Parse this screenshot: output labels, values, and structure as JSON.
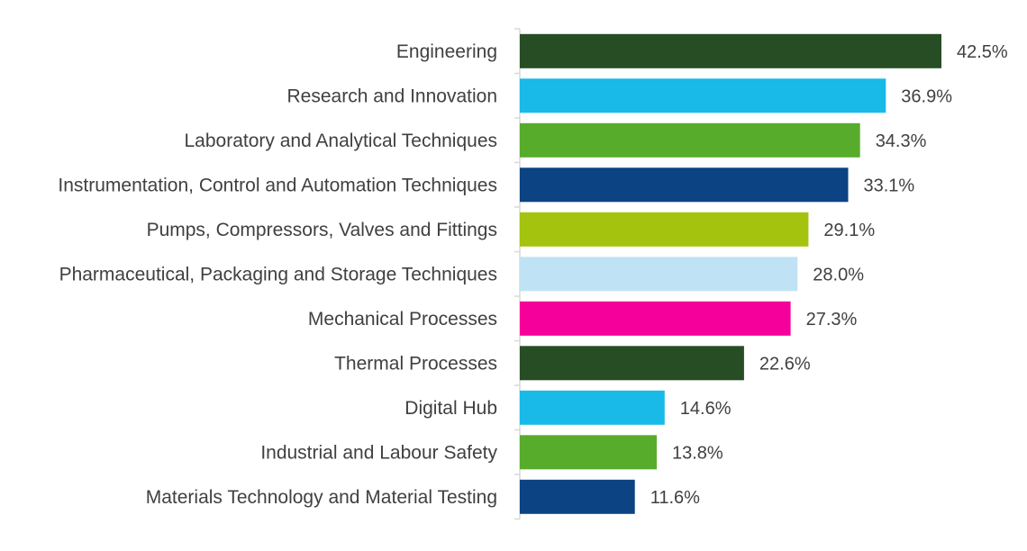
{
  "chart_data": {
    "type": "bar",
    "orientation": "horizontal",
    "categories": [
      "Engineering",
      "Research and Innovation",
      "Laboratory and Analytical Techniques",
      "Instrumentation, Control and Automation Techniques",
      "Pumps, Compressors, Valves and Fittings",
      "Pharmaceutical, Packaging and Storage Techniques",
      "Mechanical Processes",
      "Thermal Processes",
      "Digital Hub",
      "Industrial and Labour Safety",
      "Materials Technology and Material Testing"
    ],
    "values": [
      42.5,
      36.9,
      34.3,
      33.1,
      29.1,
      28.0,
      27.3,
      22.6,
      14.6,
      13.8,
      11.6
    ],
    "value_labels": [
      "42.5%",
      "36.9%",
      "34.3%",
      "33.1%",
      "29.1%",
      "28.0%",
      "27.3%",
      "22.6%",
      "14.6%",
      "13.8%",
      "11.6%"
    ],
    "colors": [
      "#264d24",
      "#19b9e8",
      "#58ac2c",
      "#0b4383",
      "#a3c30f",
      "#bfe3f4",
      "#f5009b",
      "#264d24",
      "#19b9e8",
      "#58ac2c",
      "#0b4383"
    ],
    "title": "",
    "xlabel": "",
    "ylabel": "",
    "xlim": [
      0,
      42.5
    ],
    "unit": "%",
    "grid": false,
    "legend": "none",
    "axis_color": "#d9d9d9"
  }
}
